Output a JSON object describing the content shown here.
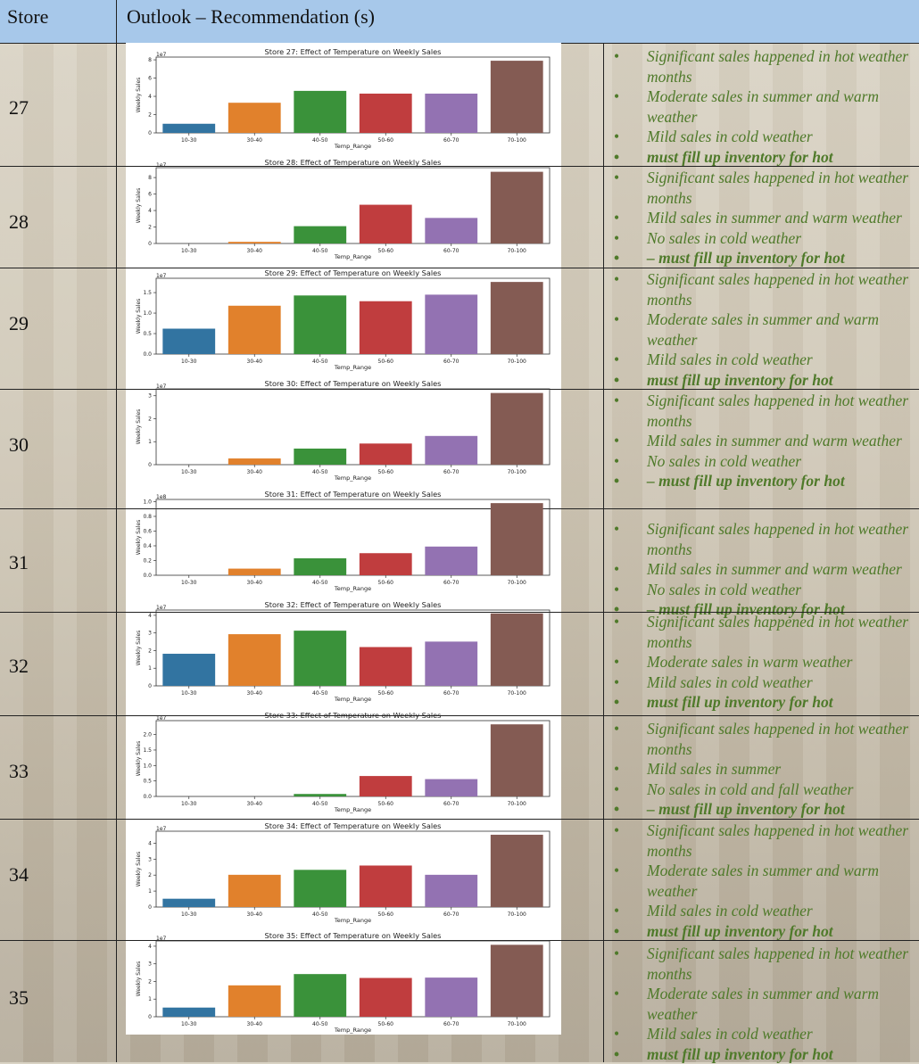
{
  "header": {
    "col1": "Store",
    "col2": "Outlook – Recommendation (s)"
  },
  "rows": [
    {
      "store": "27",
      "bullets": [
        {
          "text": "Significant sales happened in hot weather months",
          "bold": false
        },
        {
          "text": "Moderate sales in summer and warm weather",
          "bold": false
        },
        {
          "text": "Mild sales in cold weather",
          "bold": false
        },
        {
          "text": "must fill up inventory for hot",
          "bold": true
        }
      ]
    },
    {
      "store": "28",
      "bullets": [
        {
          "text": "Significant sales happened in hot weather months",
          "bold": false
        },
        {
          "text": "Mild sales in summer and warm weather",
          "bold": false
        },
        {
          "text": "No sales in cold weather",
          "bold": false
        },
        {
          "text": "– must fill up inventory for hot",
          "bold": true
        }
      ]
    },
    {
      "store": "29",
      "bullets": [
        {
          "text": "Significant sales happened in hot weather months",
          "bold": false
        },
        {
          "text": "Moderate sales in summer and warm weather",
          "bold": false
        },
        {
          "text": "Mild sales in cold weather",
          "bold": false
        },
        {
          "text": "must fill up inventory for hot",
          "bold": true
        }
      ]
    },
    {
      "store": "30",
      "bullets": [
        {
          "text": "Significant sales happened in hot weather months",
          "bold": false
        },
        {
          "text": "Mild sales in summer and warm weather",
          "bold": false
        },
        {
          "text": "No sales in cold weather",
          "bold": false
        },
        {
          "text": "– must fill up inventory for hot",
          "bold": true
        }
      ]
    },
    {
      "store": "31",
      "bullets": [
        {
          "text": "Significant sales happened in hot weather months",
          "bold": false
        },
        {
          "text": "Mild sales in summer and warm weather",
          "bold": false
        },
        {
          "text": "No sales in cold weather",
          "bold": false
        },
        {
          "text": "– must fill up inventory for hot",
          "bold": true
        }
      ]
    },
    {
      "store": "32",
      "bullets": [
        {
          "text": "Significant sales happened in hot weather months",
          "bold": false
        },
        {
          "text": "Moderate sales in warm weather",
          "bold": false
        },
        {
          "text": "Mild sales in cold weather",
          "bold": false
        },
        {
          "text": "must fill up inventory for hot",
          "bold": true
        }
      ]
    },
    {
      "store": "33",
      "bullets": [
        {
          "text": "Significant sales happened in hot weather months",
          "bold": false
        },
        {
          "text": "Mild sales in summer",
          "bold": false
        },
        {
          "text": "No sales in cold and fall weather",
          "bold": false
        },
        {
          "text": "– must fill up inventory for hot",
          "bold": true
        }
      ]
    },
    {
      "store": "34",
      "bullets": [
        {
          "text": "Significant sales happened in hot weather months",
          "bold": false
        },
        {
          "text": "Moderate sales in summer and warm weather",
          "bold": false
        },
        {
          "text": "Mild sales in cold weather",
          "bold": false
        },
        {
          "text": "must fill up inventory for hot",
          "bold": true
        }
      ]
    },
    {
      "store": "35",
      "bullets": [
        {
          "text": "Significant sales happened in hot weather months",
          "bold": false
        },
        {
          "text": "Moderate sales in summer and warm weather",
          "bold": false
        },
        {
          "text": "Mild sales in cold weather",
          "bold": false
        },
        {
          "text": "must fill up inventory for hot",
          "bold": true
        }
      ]
    }
  ],
  "bar_colors": [
    "#3274a1",
    "#e1812c",
    "#3a923a",
    "#c03d3e",
    "#9372b2",
    "#845b53"
  ],
  "chart_data": [
    {
      "type": "bar",
      "title": "Store  27: Effect of Temperature on Weekly Sales",
      "xlabel": "Temp_Range",
      "ylabel": "Weekly Sales",
      "scale": "1e7",
      "categories": [
        "10-30",
        "30-40",
        "40-50",
        "50-60",
        "60-70",
        "70-100"
      ],
      "values": [
        1.0,
        3.3,
        4.6,
        4.3,
        4.3,
        7.9
      ],
      "ylim": [
        0,
        8.3
      ],
      "yticks": [
        0,
        2,
        4,
        6,
        8
      ],
      "yticklabels": [
        "0",
        "2",
        "4",
        "6",
        "8"
      ]
    },
    {
      "type": "bar",
      "title": "Store  28: Effect of Temperature on Weekly Sales",
      "xlabel": "Temp_Range",
      "ylabel": "Weekly Sales",
      "scale": "1e7",
      "categories": [
        "10-30",
        "30-40",
        "40-50",
        "50-60",
        "60-70",
        "70-100"
      ],
      "values": [
        0.0,
        0.2,
        2.1,
        4.7,
        3.1,
        8.7
      ],
      "ylim": [
        0,
        9.2
      ],
      "yticks": [
        0,
        2,
        4,
        6,
        8
      ],
      "yticklabels": [
        "0",
        "2",
        "4",
        "6",
        "8"
      ]
    },
    {
      "type": "bar",
      "title": "Store  29: Effect of Temperature on Weekly Sales",
      "xlabel": "Temp_Range",
      "ylabel": "Weekly Sales",
      "scale": "1e7",
      "categories": [
        "10-30",
        "30-40",
        "40-50",
        "50-60",
        "60-70",
        "70-100"
      ],
      "values": [
        0.62,
        1.18,
        1.43,
        1.29,
        1.45,
        1.76
      ],
      "ylim": [
        0,
        1.85
      ],
      "yticks": [
        0,
        0.5,
        1.0,
        1.5
      ],
      "yticklabels": [
        "0.0",
        "0.5",
        "1.0",
        "1.5"
      ]
    },
    {
      "type": "bar",
      "title": "Store  30: Effect of Temperature on Weekly Sales",
      "xlabel": "Temp_Range",
      "ylabel": "Weekly Sales",
      "scale": "1e7",
      "categories": [
        "10-30",
        "30-40",
        "40-50",
        "50-60",
        "60-70",
        "70-100"
      ],
      "values": [
        0.0,
        0.27,
        0.7,
        0.92,
        1.25,
        3.12
      ],
      "ylim": [
        0,
        3.3
      ],
      "yticks": [
        0,
        1,
        2,
        3
      ],
      "yticklabels": [
        "0",
        "1",
        "2",
        "3"
      ]
    },
    {
      "type": "bar",
      "title": "Store  31: Effect of Temperature on Weekly Sales",
      "xlabel": "Temp_Range",
      "ylabel": "Weekly Sales",
      "scale": "1e8",
      "categories": [
        "10-30",
        "30-40",
        "40-50",
        "50-60",
        "60-70",
        "70-100"
      ],
      "values": [
        0.0,
        0.09,
        0.23,
        0.3,
        0.39,
        0.98
      ],
      "ylim": [
        0,
        1.03
      ],
      "yticks": [
        0,
        0.2,
        0.4,
        0.6,
        0.8,
        1.0
      ],
      "yticklabels": [
        "0.0",
        "0.2",
        "0.4",
        "0.6",
        "0.8",
        "1.0"
      ]
    },
    {
      "type": "bar",
      "title": "Store  32: Effect of Temperature on Weekly Sales",
      "xlabel": "Temp_Range",
      "ylabel": "Weekly Sales",
      "scale": "1e7",
      "categories": [
        "10-30",
        "30-40",
        "40-50",
        "50-60",
        "60-70",
        "70-100"
      ],
      "values": [
        1.82,
        2.93,
        3.13,
        2.2,
        2.51,
        4.11
      ],
      "ylim": [
        0,
        4.3
      ],
      "yticks": [
        0,
        1,
        2,
        3,
        4
      ],
      "yticklabels": [
        "0",
        "1",
        "2",
        "3",
        "4"
      ]
    },
    {
      "type": "bar",
      "title": "Store  33: Effect of Temperature on Weekly Sales",
      "xlabel": "Temp_Range",
      "ylabel": "Weekly Sales",
      "scale": "1e7",
      "categories": [
        "10-30",
        "30-40",
        "40-50",
        "50-60",
        "60-70",
        "70-100"
      ],
      "values": [
        0.0,
        0.0,
        0.08,
        0.66,
        0.56,
        2.33
      ],
      "ylim": [
        0,
        2.45
      ],
      "yticks": [
        0,
        0.5,
        1.0,
        1.5,
        2.0
      ],
      "yticklabels": [
        "0.0",
        "0.5",
        "1.0",
        "1.5",
        "2.0"
      ]
    },
    {
      "type": "bar",
      "title": "Store  34: Effect of Temperature on Weekly Sales",
      "xlabel": "Temp_Range",
      "ylabel": "Weekly Sales",
      "scale": "1e7",
      "categories": [
        "10-30",
        "30-40",
        "40-50",
        "50-60",
        "60-70",
        "70-100"
      ],
      "values": [
        0.52,
        2.02,
        2.33,
        2.6,
        2.02,
        4.53
      ],
      "ylim": [
        0,
        4.75
      ],
      "yticks": [
        0,
        1,
        2,
        3,
        4
      ],
      "yticklabels": [
        "0",
        "1",
        "2",
        "3",
        "4"
      ]
    },
    {
      "type": "bar",
      "title": "Store  35: Effect of Temperature on Weekly Sales",
      "xlabel": "Temp_Range",
      "ylabel": "Weekly Sales",
      "scale": "1e7",
      "categories": [
        "10-30",
        "30-40",
        "40-50",
        "50-60",
        "60-70",
        "70-100"
      ],
      "values": [
        0.52,
        1.78,
        2.42,
        2.2,
        2.22,
        4.08
      ],
      "ylim": [
        0,
        4.3
      ],
      "yticks": [
        0,
        1,
        2,
        3,
        4
      ],
      "yticklabels": [
        "0",
        "1",
        "2",
        "3",
        "4"
      ]
    }
  ]
}
